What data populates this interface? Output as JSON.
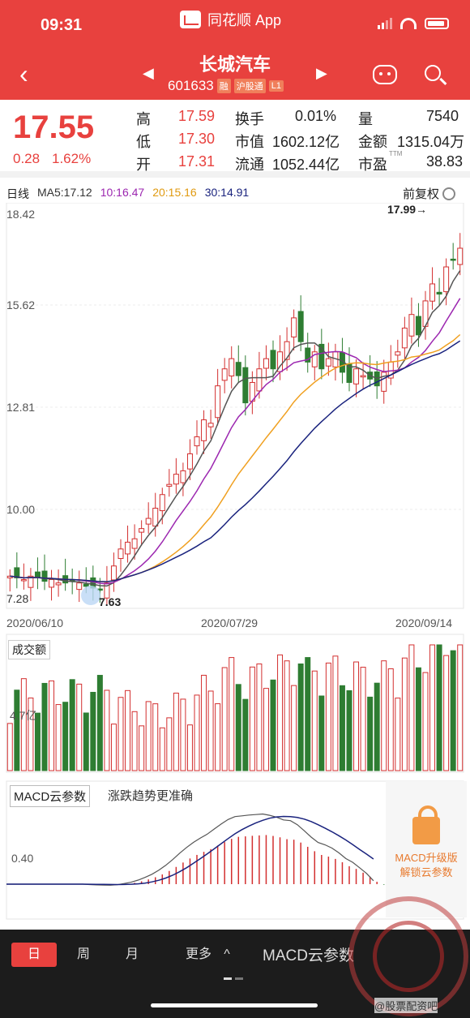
{
  "status": {
    "time": "09:31",
    "app_name": "同花顺 App"
  },
  "stock": {
    "name": "长城汽车",
    "code": "601633",
    "tags": [
      "融",
      "沪股通",
      "L1"
    ],
    "price": "17.55",
    "change": "0.28",
    "change_pct": "1.62%"
  },
  "quote_grid": [
    {
      "label": "高",
      "value": "17.59",
      "color": "red"
    },
    {
      "label": "低",
      "value": "17.30",
      "color": "red"
    },
    {
      "label": "开",
      "value": "17.31",
      "color": "red"
    },
    {
      "label": "换手",
      "value": "0.01%",
      "color": "dark"
    },
    {
      "label": "市值",
      "value": "1602.12亿",
      "color": "dark"
    },
    {
      "label": "流通",
      "value": "1052.44亿",
      "color": "dark"
    },
    {
      "label": "量",
      "value": "7540",
      "color": "dark"
    },
    {
      "label": "金额",
      "value": "1315.04万",
      "color": "dark"
    },
    {
      "label": "市盈",
      "label_sup": "TTM",
      "value": "38.83",
      "color": "dark"
    }
  ],
  "kline": {
    "period_label": "日线",
    "ma5": "MA5:17.12",
    "ma10": "10:16.47",
    "ma20": "20:15.16",
    "ma30": "30:14.91",
    "adjust": "前复权",
    "y_ticks": [
      "18.42",
      "15.62",
      "12.81",
      "10.00"
    ],
    "low_label": "7.28",
    "low_mark": "7.63",
    "high_mark": "17.99→",
    "dates": [
      "2020/06/10",
      "2020/07/29",
      "2020/09/14"
    ],
    "colors": {
      "up": "#d32f2f",
      "down": "#2e7d32",
      "ma5": "#555555",
      "ma10": "#9c27b0",
      "ma20": "#f0a020",
      "ma30": "#1a237e"
    }
  },
  "volume": {
    "title": "成交额",
    "tick": "4.7亿"
  },
  "macd": {
    "title": "MACD云参数",
    "desc": "涨跌趋势更准确",
    "tick": "0.40",
    "lock_line1": "MACD升级版",
    "lock_line2": "解锁云参数"
  },
  "bottom": {
    "tabs": [
      "日",
      "周",
      "月",
      "更多"
    ],
    "macd_label": "MACD云参数"
  },
  "watermark": {
    "text": "@股票配资吧"
  },
  "chart_data": {
    "type": "candlestick",
    "x_range": [
      "2020/06/10",
      "2020/09/14"
    ],
    "ylim": [
      7.0,
      18.6
    ],
    "closes": [
      7.9,
      7.85,
      7.8,
      7.9,
      7.85,
      7.75,
      7.8,
      7.7,
      7.7,
      7.75,
      7.7,
      7.6,
      7.55,
      7.5,
      7.7,
      8.2,
      8.7,
      8.9,
      9.0,
      9.3,
      9.6,
      9.9,
      10.3,
      10.6,
      10.9,
      11.0,
      11.5,
      12.0,
      12.5,
      12.4,
      13.5,
      14.0,
      14.3,
      13.8,
      13.0,
      13.6,
      14.0,
      14.3,
      14.0,
      14.5,
      14.8,
      15.5,
      14.8,
      14.2,
      14.5,
      14.0,
      14.3,
      14.5,
      13.9,
      13.6,
      14.0,
      13.8,
      13.7,
      13.5,
      13.9,
      14.2,
      14.5,
      15.2,
      15.6,
      15.0,
      16.0,
      16.5,
      16.2,
      17.0,
      17.2,
      17.55
    ],
    "volume_tick": "4.7亿",
    "macd_tick": 0.4
  }
}
